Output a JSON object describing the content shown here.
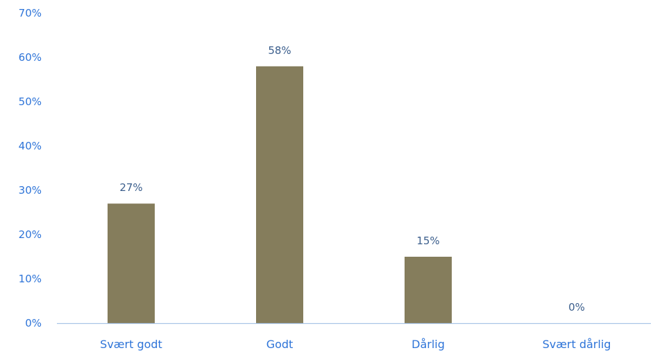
{
  "chart_data": {
    "type": "bar",
    "categories": [
      "Svært godt",
      "Godt",
      "Dårlig",
      "Svært dårlig"
    ],
    "values": [
      27,
      58,
      15,
      0
    ],
    "data_labels": [
      "27%",
      "58%",
      "15%",
      "0%"
    ],
    "yticks": [
      "0%",
      "10%",
      "20%",
      "30%",
      "40%",
      "50%",
      "60%",
      "70%"
    ],
    "ylim": [
      0,
      70
    ],
    "title": "",
    "xlabel": "",
    "ylabel": "",
    "grid": false,
    "legend": "none",
    "colors": {
      "bar": "#857D5C",
      "axis_text": "#2E74D8",
      "data_label_text": "#3B5E8C",
      "baseline": "#A9C4E6"
    }
  }
}
